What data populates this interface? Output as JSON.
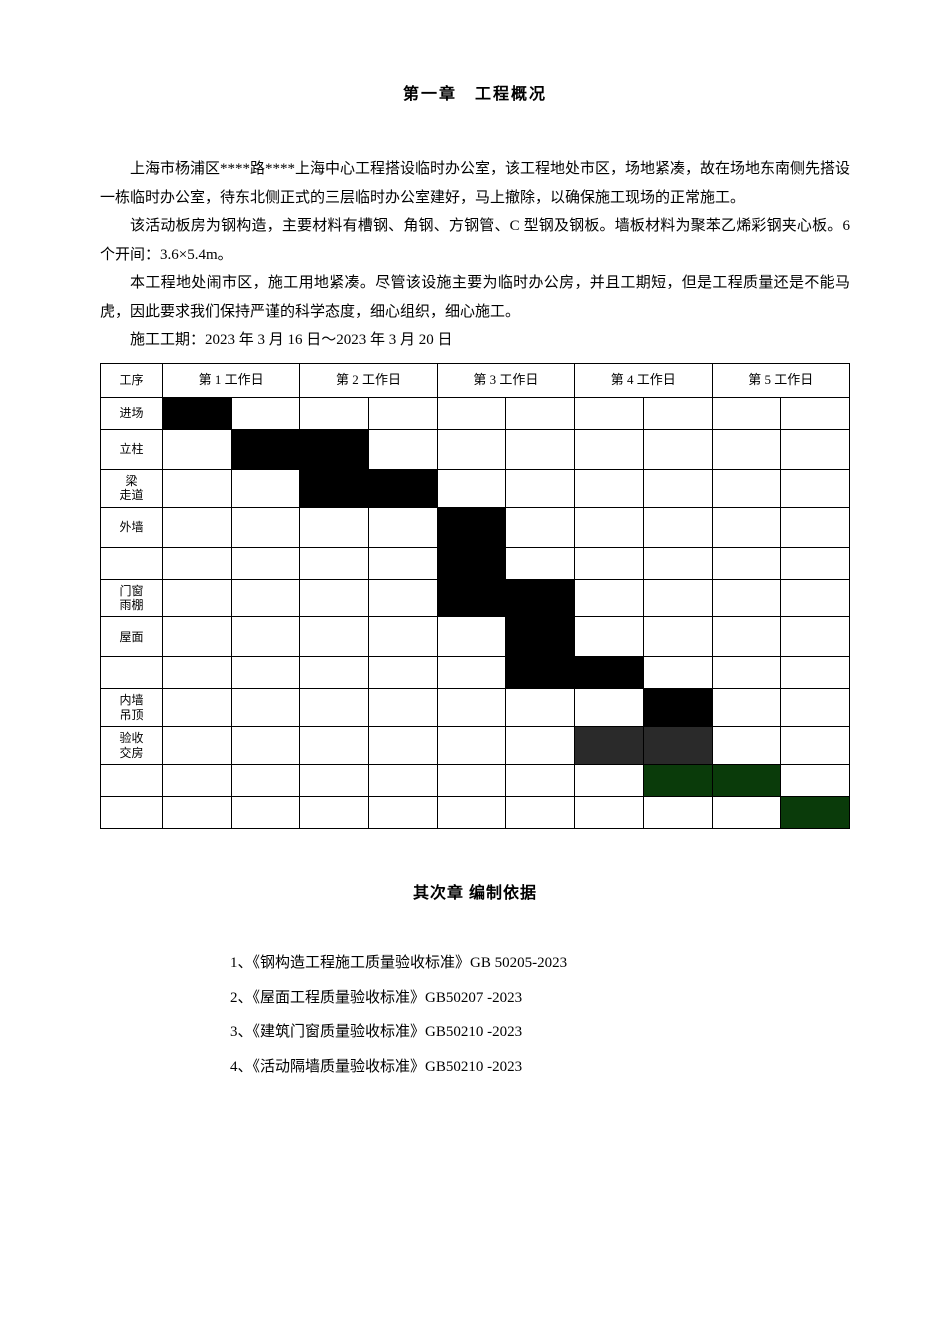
{
  "chapter1": {
    "title": "第一章　工程概况",
    "p1": "上海市杨浦区****路****上海中心工程搭设临时办公室，该工程地处市区，场地紧凑，故在场地东南侧先搭设一栋临时办公室，待东北侧正式的三层临时办公室建好，马上撤除，以确保施工现场的正常施工。",
    "p2": "该活动板房为钢构造，主要材料有槽钢、角钢、方钢管、C 型钢及钢板。墙板材料为聚苯乙烯彩钢夹心板。6 个开间：3.6×5.4m。",
    "p3": "本工程地处闹市区，施工用地紧凑。尽管该设施主要为临时办公房，并且工期短，但是工程质量还是不能马虎，因此要求我们保持严谨的科学态度，细心组织，细心施工。",
    "schedule": "施工工期：2023 年 3 月 16 日～2023 年 3 月 20 日"
  },
  "gantt": {
    "col_proc": "工序",
    "days": [
      "第 1  工作日",
      "第 2  工作日",
      "第 3  工作日",
      "第 4  工作日",
      "第 5  工作日"
    ],
    "rows": [
      {
        "label": "进场",
        "height": "med",
        "fill": [
          [
            0,
            "black"
          ]
        ]
      },
      {
        "label": "立柱",
        "height": "tall",
        "fill": [
          [
            1,
            "black"
          ],
          [
            2,
            "black"
          ]
        ]
      },
      {
        "label": "梁\n走道",
        "height": "short",
        "fill": [
          [
            2,
            "black"
          ],
          [
            3,
            "black"
          ]
        ]
      },
      {
        "label": "外墙",
        "height": "tall",
        "fill": [
          [
            4,
            "black"
          ]
        ]
      },
      {
        "label": "",
        "height": "med",
        "fill": [
          [
            4,
            "black"
          ]
        ]
      },
      {
        "label": "门窗\n雨棚",
        "height": "short",
        "fill": [
          [
            4,
            "black"
          ],
          [
            5,
            "black"
          ]
        ]
      },
      {
        "label": "屋面",
        "height": "tall",
        "fill": [
          [
            5,
            "black"
          ]
        ]
      },
      {
        "label": "",
        "height": "med",
        "fill": [
          [
            5,
            "black"
          ],
          [
            6,
            "black"
          ]
        ]
      },
      {
        "label": "内墙\n吊顶",
        "height": "short",
        "fill": [
          [
            7,
            "black"
          ]
        ]
      },
      {
        "label": "验收\n交房",
        "height": "med",
        "fill": [
          [
            6,
            "dark"
          ],
          [
            7,
            "dark"
          ]
        ]
      },
      {
        "label": "",
        "height": "med",
        "fill": [
          [
            7,
            "green"
          ],
          [
            8,
            "green"
          ]
        ]
      },
      {
        "label": "",
        "height": "med",
        "fill": [
          [
            9,
            "green"
          ]
        ]
      }
    ],
    "colors": {
      "black": "#000000",
      "dark": "#2a2a2a",
      "green": "#0a3b0a"
    }
  },
  "chapter2": {
    "title": "其次章 编制依据",
    "refs": [
      "1、《钢构造工程施工质量验收标准》GB 50205-2023",
      "2、《屋面工程质量验收标准》GB50207 -2023",
      "3、《建筑门窗质量验收标准》GB50210 -2023",
      "4、《活动隔墙质量验收标准》GB50210 -2023"
    ]
  }
}
